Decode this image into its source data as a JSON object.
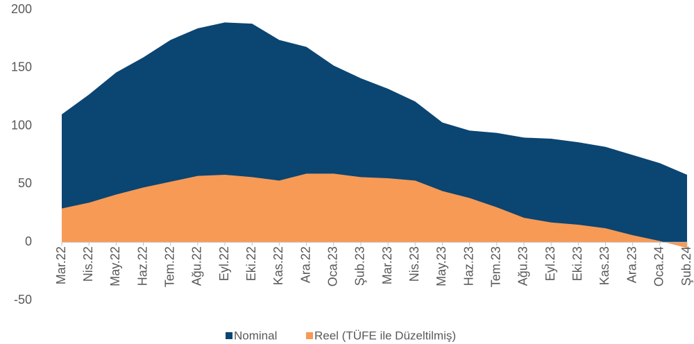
{
  "chart_data": {
    "type": "area",
    "categories": [
      "Mar.22",
      "Nis.22",
      "May.22",
      "Haz.22",
      "Tem.22",
      "Ağu.22",
      "Eyl.22",
      "Eki.22",
      "Kas.22",
      "Ara.22",
      "Oca.23",
      "Şub.23",
      "Mar.23",
      "Nis.23",
      "May.23",
      "Haz.23",
      "Tem.23",
      "Ağu.23",
      "Eyl.23",
      "Eki.23",
      "Kas.23",
      "Ara.23",
      "Oca.24",
      "Şub.24"
    ],
    "series": [
      {
        "name": "Nominal",
        "color": "#0b4572",
        "values": [
          110,
          127,
          146,
          159,
          174,
          184,
          189,
          188,
          174,
          168,
          152,
          141,
          132,
          121,
          103,
          96,
          94,
          90,
          89,
          86,
          82,
          75,
          68,
          58
        ]
      },
      {
        "name": "Reel (TÜFE ile Düzeltilmiş)",
        "color": "#f79a55",
        "values": [
          29,
          34,
          41,
          47,
          52,
          57,
          58,
          56,
          53,
          59,
          59,
          56,
          55,
          53,
          44,
          38,
          30,
          21,
          17,
          15,
          12,
          6,
          1,
          -5
        ]
      }
    ],
    "ylim": [
      -50,
      200
    ],
    "yticks": [
      -50,
      0,
      50,
      100,
      150,
      200
    ],
    "legend": "bottom"
  }
}
